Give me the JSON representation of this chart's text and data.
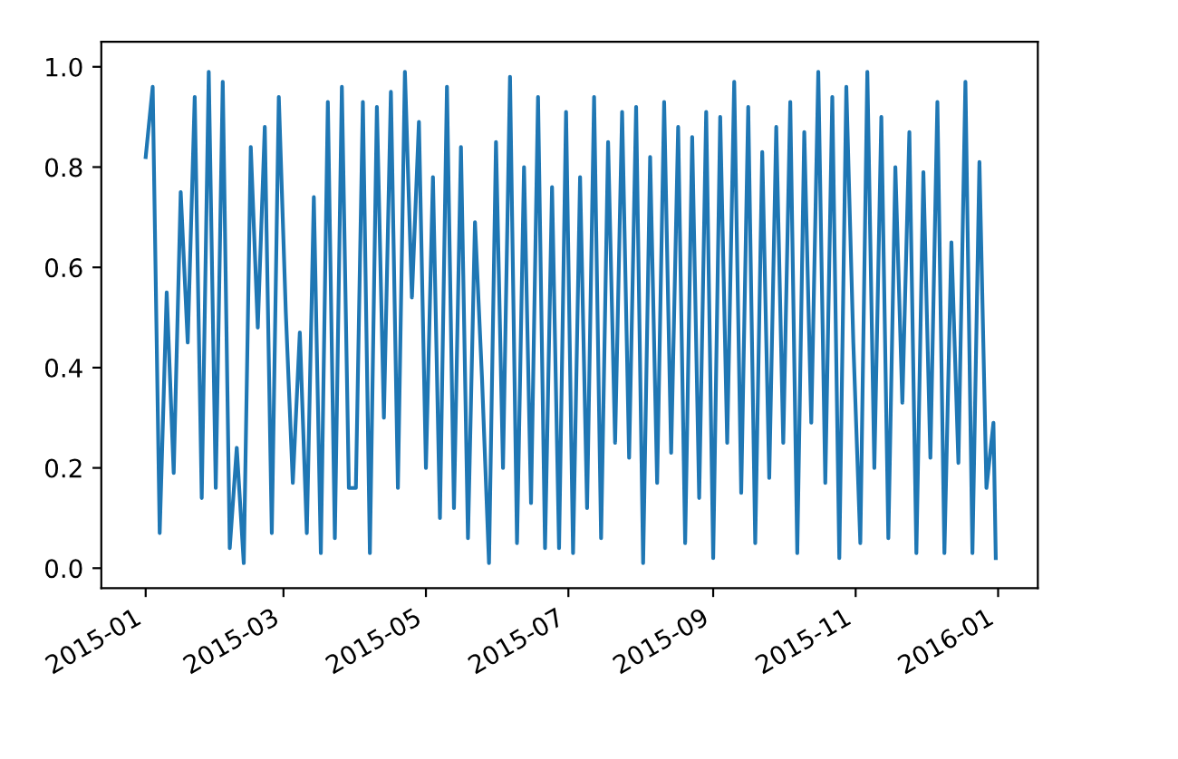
{
  "chart_data": {
    "type": "line",
    "x": [
      "2015-01-01",
      "2015-01-04",
      "2015-01-07",
      "2015-01-10",
      "2015-01-13",
      "2015-01-16",
      "2015-01-19",
      "2015-01-22",
      "2015-01-25",
      "2015-01-28",
      "2015-01-31",
      "2015-02-03",
      "2015-02-06",
      "2015-02-09",
      "2015-02-12",
      "2015-02-15",
      "2015-02-18",
      "2015-02-21",
      "2015-02-24",
      "2015-02-27",
      "2015-03-02",
      "2015-03-05",
      "2015-03-08",
      "2015-03-11",
      "2015-03-14",
      "2015-03-17",
      "2015-03-20",
      "2015-03-23",
      "2015-03-26",
      "2015-03-29",
      "2015-04-01",
      "2015-04-04",
      "2015-04-07",
      "2015-04-10",
      "2015-04-13",
      "2015-04-16",
      "2015-04-19",
      "2015-04-22",
      "2015-04-25",
      "2015-04-28",
      "2015-05-01",
      "2015-05-04",
      "2015-05-07",
      "2015-05-10",
      "2015-05-13",
      "2015-05-16",
      "2015-05-19",
      "2015-05-22",
      "2015-05-25",
      "2015-05-28",
      "2015-05-31",
      "2015-06-03",
      "2015-06-06",
      "2015-06-09",
      "2015-06-12",
      "2015-06-15",
      "2015-06-18",
      "2015-06-21",
      "2015-06-24",
      "2015-06-27",
      "2015-06-30",
      "2015-07-03",
      "2015-07-06",
      "2015-07-09",
      "2015-07-12",
      "2015-07-15",
      "2015-07-18",
      "2015-07-21",
      "2015-07-24",
      "2015-07-27",
      "2015-07-30",
      "2015-08-02",
      "2015-08-05",
      "2015-08-08",
      "2015-08-11",
      "2015-08-14",
      "2015-08-17",
      "2015-08-20",
      "2015-08-23",
      "2015-08-26",
      "2015-08-29",
      "2015-09-01",
      "2015-09-04",
      "2015-09-07",
      "2015-09-10",
      "2015-09-13",
      "2015-09-16",
      "2015-09-19",
      "2015-09-22",
      "2015-09-25",
      "2015-09-28",
      "2015-10-01",
      "2015-10-04",
      "2015-10-07",
      "2015-10-10",
      "2015-10-13",
      "2015-10-16",
      "2015-10-19",
      "2015-10-22",
      "2015-10-25",
      "2015-10-28",
      "2015-10-31",
      "2015-11-03",
      "2015-11-06",
      "2015-11-09",
      "2015-11-12",
      "2015-11-15",
      "2015-11-18",
      "2015-11-21",
      "2015-11-24",
      "2015-11-27",
      "2015-11-30",
      "2015-12-03",
      "2015-12-06",
      "2015-12-09",
      "2015-12-12",
      "2015-12-15",
      "2015-12-18",
      "2015-12-21",
      "2015-12-24",
      "2015-12-27",
      "2015-12-30",
      "2015-12-31"
    ],
    "series": [
      {
        "color": "#1f77b4",
        "values": [
          0.82,
          0.96,
          0.07,
          0.55,
          0.19,
          0.75,
          0.45,
          0.94,
          0.14,
          0.99,
          0.16,
          0.97,
          0.04,
          0.24,
          0.01,
          0.84,
          0.48,
          0.88,
          0.07,
          0.94,
          0.51,
          0.17,
          0.47,
          0.07,
          0.74,
          0.03,
          0.93,
          0.06,
          0.96,
          0.16,
          0.16,
          0.93,
          0.03,
          0.92,
          0.3,
          0.95,
          0.16,
          0.99,
          0.54,
          0.89,
          0.2,
          0.78,
          0.1,
          0.96,
          0.12,
          0.84,
          0.06,
          0.69,
          0.38,
          0.01,
          0.85,
          0.2,
          0.98,
          0.05,
          0.8,
          0.13,
          0.94,
          0.04,
          0.76,
          0.04,
          0.91,
          0.03,
          0.78,
          0.12,
          0.94,
          0.06,
          0.85,
          0.25,
          0.91,
          0.22,
          0.92,
          0.01,
          0.82,
          0.17,
          0.93,
          0.23,
          0.88,
          0.05,
          0.86,
          0.14,
          0.91,
          0.02,
          0.9,
          0.25,
          0.97,
          0.15,
          0.92,
          0.05,
          0.83,
          0.18,
          0.88,
          0.25,
          0.93,
          0.03,
          0.87,
          0.29,
          0.99,
          0.17,
          0.94,
          0.02,
          0.96,
          0.45,
          0.05,
          0.99,
          0.2,
          0.9,
          0.06,
          0.8,
          0.33,
          0.87,
          0.03,
          0.79,
          0.22,
          0.93,
          0.03,
          0.65,
          0.21,
          0.97,
          0.03,
          0.81,
          0.16,
          0.29,
          0.02
        ]
      }
    ],
    "xlim": [
      "2014-12-13",
      "2016-01-18"
    ],
    "xticks": [
      {
        "value": "2015-01-01",
        "label": "2015-01"
      },
      {
        "value": "2015-03-01",
        "label": "2015-03"
      },
      {
        "value": "2015-05-01",
        "label": "2015-05"
      },
      {
        "value": "2015-07-01",
        "label": "2015-07"
      },
      {
        "value": "2015-09-01",
        "label": "2015-09"
      },
      {
        "value": "2015-11-01",
        "label": "2015-11"
      },
      {
        "value": "2016-01-01",
        "label": "2016-01"
      }
    ],
    "ylim": [
      -0.04,
      1.05
    ],
    "yticks": [
      {
        "value": 0,
        "label": "0.0"
      },
      {
        "value": 0.2,
        "label": "0.2"
      },
      {
        "value": 0.4,
        "label": "0.4"
      },
      {
        "value": 0.6,
        "label": "0.6"
      },
      {
        "value": 0.8,
        "label": "0.8"
      },
      {
        "value": 1.0,
        "label": "1.0"
      }
    ],
    "grid": false,
    "legend": false,
    "marker": "none",
    "line_style": "solid"
  }
}
